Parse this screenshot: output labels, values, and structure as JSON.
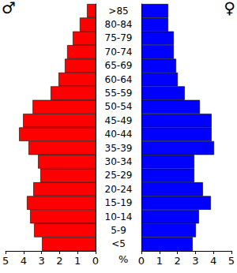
{
  "chart_data": {
    "type": "bar",
    "orientation": "horizontal",
    "xlabel": "%",
    "categories": [
      "<5",
      "5-9",
      "10-14",
      "15-19",
      "20-24",
      "25-29",
      "30-34",
      "35-39",
      "40-44",
      "45-49",
      "50-54",
      "55-59",
      "60-64",
      "65-69",
      "70-74",
      "75-79",
      "80-84",
      ">85"
    ],
    "series": [
      {
        "name": "♂",
        "color": "#ff0000",
        "values": [
          2.98,
          3.42,
          3.64,
          3.82,
          3.46,
          3.07,
          3.2,
          3.73,
          4.25,
          4.03,
          3.5,
          2.5,
          2.06,
          1.71,
          1.58,
          1.27,
          0.88,
          0.48
        ]
      },
      {
        "name": "♀",
        "color": "#0000ff",
        "values": [
          2.85,
          3.03,
          3.2,
          3.86,
          3.42,
          2.94,
          2.94,
          4.04,
          3.9,
          3.9,
          3.25,
          2.41,
          2.02,
          1.93,
          1.8,
          1.8,
          1.49,
          1.49
        ]
      }
    ],
    "xlim": [
      0,
      5
    ],
    "xticks": [
      0,
      1,
      2,
      3,
      4,
      5
    ],
    "grid": false
  }
}
